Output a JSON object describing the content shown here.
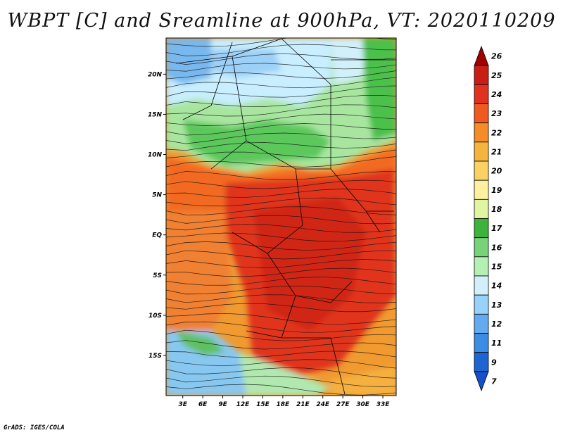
{
  "title": "WBPT [C] and Sreamline at 900hPa, VT: 2020110209",
  "credit": "GrADS: IGES/COLA",
  "map": {
    "lat_labels": [
      "20N",
      "15N",
      "10N",
      "5N",
      "EQ",
      "5S",
      "10S",
      "15S"
    ],
    "lat_values": [
      20,
      15,
      10,
      5,
      0,
      -5,
      -10,
      -15
    ],
    "lon_labels": [
      "3E",
      "6E",
      "9E",
      "12E",
      "15E",
      "18E",
      "21E",
      "24E",
      "27E",
      "30E",
      "33E"
    ],
    "lon_values": [
      3,
      6,
      9,
      12,
      15,
      18,
      21,
      24,
      27,
      30,
      33
    ],
    "lon_range": [
      0.5,
      35
    ],
    "lat_range": [
      -20,
      24.5
    ]
  },
  "colorbar": {
    "labels": [
      "26",
      "25",
      "24",
      "23",
      "22",
      "21",
      "20",
      "19",
      "18",
      "17",
      "16",
      "15",
      "14",
      "13",
      "12",
      "11",
      "9",
      "7"
    ],
    "colors": [
      "#a00000",
      "#c81e14",
      "#e0321e",
      "#f05a1e",
      "#f58c28",
      "#f5b43c",
      "#fad264",
      "#fff0a0",
      "#e0f5a0",
      "#3cb43c",
      "#78d278",
      "#b4f0b4",
      "#d2f0fa",
      "#96d2fa",
      "#64aaf0",
      "#3c8ce6",
      "#1e64d2",
      "#1450c8"
    ]
  }
}
